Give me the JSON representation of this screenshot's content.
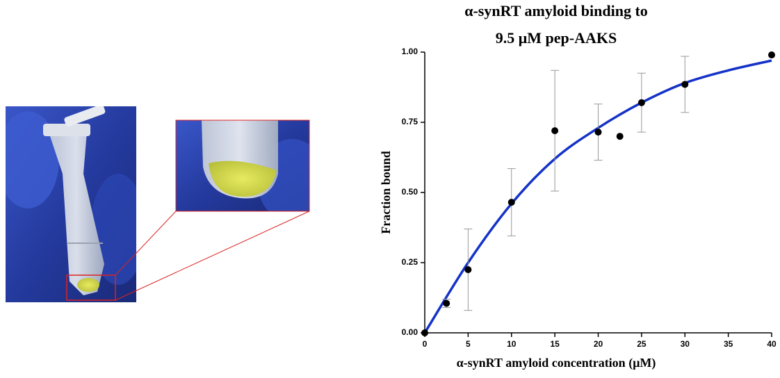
{
  "chart_data": {
    "type": "scatter",
    "title": [
      "α-synRT amyloid binding to",
      "9.5 μM pep-AAKS"
    ],
    "x_label": "α-synRT amyloid concentration (μM)",
    "y_label": "Fraction bound",
    "xlim": [
      0,
      40
    ],
    "ylim": [
      0,
      1
    ],
    "xticks": [
      0,
      5,
      10,
      15,
      20,
      25,
      30,
      35,
      40
    ],
    "yticks": [
      {
        "value": 0,
        "label": "0.00"
      },
      {
        "value": 0.25,
        "label": "0.25"
      },
      {
        "value": 0.5,
        "label": "0.50"
      },
      {
        "value": 0.75,
        "label": "0.75"
      },
      {
        "value": 1,
        "label": "1.00"
      }
    ],
    "series": [
      {
        "type": "scatter",
        "color": "#000000",
        "x": [
          0,
          2.5,
          5,
          10,
          15,
          20,
          22.5,
          25,
          30,
          40
        ],
        "values": [
          0,
          0.105,
          0.225,
          0.465,
          0.72,
          0.715,
          0.7,
          0.82,
          0.885,
          0.99
        ],
        "errors": [
          null,
          0.015,
          0.145,
          0.12,
          0.215,
          0.1,
          null,
          0.105,
          0.1,
          null
        ],
        "error_color": "#999999"
      },
      {
        "type": "line",
        "color": "#1432c8",
        "x": [
          0,
          5,
          10,
          15,
          20,
          25,
          30,
          35,
          40
        ],
        "values": [
          0,
          0.25,
          0.46,
          0.62,
          0.73,
          0.82,
          0.89,
          0.935,
          0.97
        ]
      }
    ]
  }
}
